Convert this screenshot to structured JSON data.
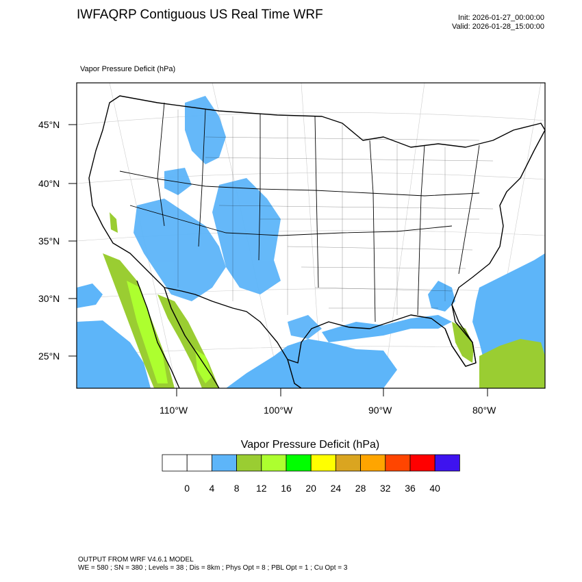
{
  "header": {
    "title": "IWFAQRP Contiguous US Real Time WRF",
    "init": "Init: 2026-01-27_00:00:00",
    "valid": "Valid: 2026-01-28_15:00:00"
  },
  "field_label": "Vapor Pressure Deficit   (hPa)",
  "map": {
    "lat_labels": [
      "45°N",
      "40°N",
      "35°N",
      "30°N",
      "25°N"
    ],
    "lon_labels": [
      "110°W",
      "100°W",
      "90°W",
      "80°W"
    ],
    "colors": {
      "ocean_band": "#5db5f9",
      "band_8_12": "#9acd32",
      "band_12_16": "#adff2f",
      "outline": "#000000"
    }
  },
  "colorbar": {
    "title": "Vapor Pressure Deficit  (hPa)",
    "ticks": [
      "0",
      "4",
      "8",
      "12",
      "16",
      "20",
      "24",
      "28",
      "32",
      "36",
      "40"
    ],
    "colors": [
      "#ffffff",
      "#ffffff",
      "#5db5f9",
      "#9acd32",
      "#adff2f",
      "#00ff00",
      "#ffff00",
      "#daa520",
      "#ffa500",
      "#ff4500",
      "#ff0000",
      "#3e13ef"
    ]
  },
  "footer": {
    "line1": "OUTPUT FROM WRF V4.6.1 MODEL",
    "line2": "WE = 580 ; SN = 380 ; Levels = 38 ; Dis = 8km ; Phys Opt = 8 ; PBL Opt = 1 ; Cu Opt = 3"
  }
}
